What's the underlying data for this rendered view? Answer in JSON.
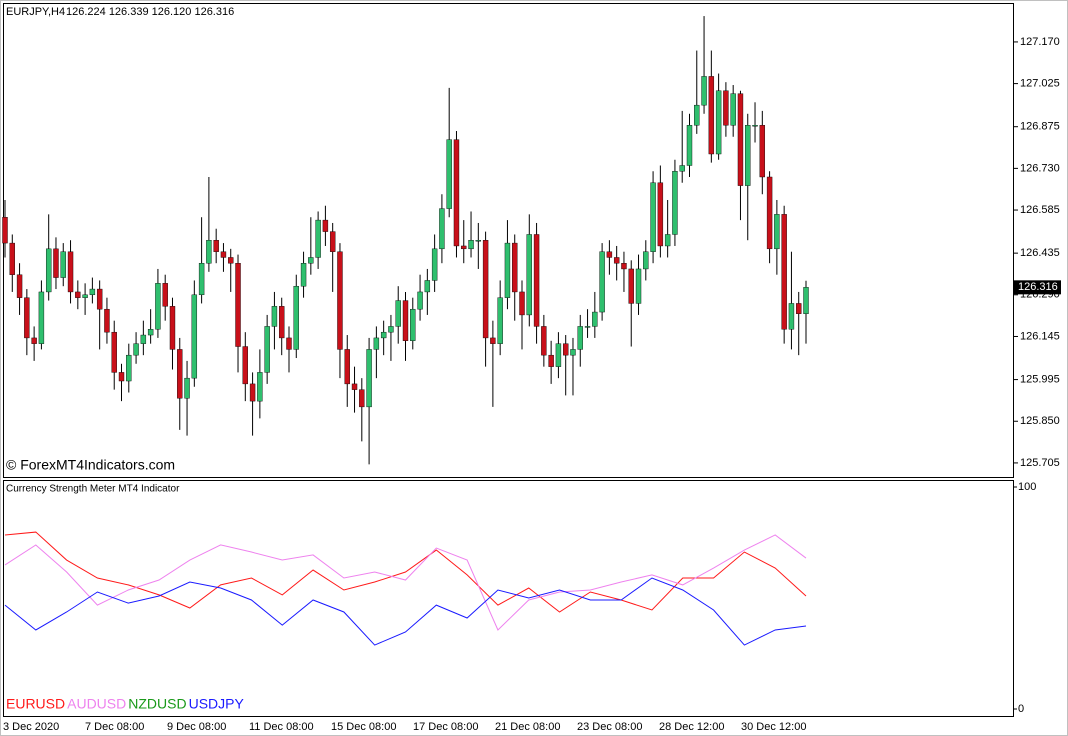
{
  "chart_data": [
    {
      "type": "candlestick",
      "title": "EURJPY,H4",
      "subtitle": "126.224 126.339 126.120 126.316",
      "watermark": "© ForexMT4Indicators.com",
      "up_color": "#2fbf6e",
      "down_color": "#c8101a",
      "open": [
        126.56,
        126.47,
        126.36,
        126.28,
        126.14,
        126.12,
        126.3,
        126.45,
        126.35,
        126.44,
        126.3,
        126.28,
        126.29,
        126.31,
        126.24,
        126.16,
        126.02,
        125.99,
        126.08,
        126.12,
        126.15,
        126.17,
        126.33,
        126.25,
        126.1,
        125.93,
        126.0,
        126.29,
        126.4,
        126.48,
        126.44,
        126.42,
        126.4,
        126.11,
        125.98,
        125.92,
        126.02,
        126.18,
        126.25,
        126.14,
        126.1,
        126.32,
        126.4,
        126.42,
        126.55,
        126.51,
        126.44,
        126.1,
        125.98,
        125.96,
        125.9,
        126.1,
        126.14,
        126.16,
        126.18,
        126.27,
        126.13,
        126.24,
        126.3,
        126.34,
        126.45,
        126.59,
        126.83,
        126.46,
        126.45,
        126.48,
        126.48,
        126.14,
        126.12,
        126.28,
        126.47,
        126.3,
        126.22,
        126.5,
        126.18,
        126.08,
        126.04,
        126.12,
        126.08,
        126.1,
        126.18,
        126.18,
        126.23,
        126.44,
        126.42,
        126.4,
        126.38,
        126.26,
        126.38,
        126.44,
        126.68,
        126.46,
        126.5,
        126.72,
        126.74,
        126.88,
        126.95,
        127.05,
        126.78,
        127.0,
        126.88,
        126.99,
        126.67,
        126.88,
        126.88,
        126.7,
        126.45,
        126.57,
        126.17,
        126.26,
        126.224
      ],
      "high": [
        126.62,
        126.5,
        126.4,
        126.31,
        126.18,
        126.34,
        126.57,
        126.49,
        126.47,
        126.48,
        126.34,
        126.33,
        126.35,
        126.34,
        126.28,
        126.2,
        126.05,
        126.12,
        126.16,
        126.2,
        126.24,
        126.38,
        126.36,
        126.28,
        126.14,
        126.06,
        126.34,
        126.56,
        126.7,
        126.52,
        126.47,
        126.45,
        126.43,
        126.16,
        126.02,
        126.1,
        126.22,
        126.3,
        126.28,
        126.18,
        126.36,
        126.44,
        126.56,
        126.58,
        126.6,
        126.54,
        126.47,
        126.15,
        126.04,
        126.0,
        126.14,
        126.18,
        126.2,
        126.22,
        126.32,
        126.3,
        126.28,
        126.36,
        126.38,
        126.5,
        126.64,
        127.01,
        126.86,
        126.55,
        126.58,
        126.54,
        126.51,
        126.2,
        126.34,
        126.55,
        126.5,
        126.34,
        126.57,
        126.54,
        126.22,
        126.13,
        126.16,
        126.15,
        126.14,
        126.22,
        126.24,
        126.3,
        126.47,
        126.48,
        126.46,
        126.44,
        126.41,
        126.43,
        126.48,
        126.72,
        126.74,
        126.62,
        126.76,
        126.93,
        126.92,
        127.14,
        127.26,
        127.14,
        127.06,
        127.03,
        127.02,
        127.0,
        126.92,
        126.96,
        126.93,
        126.72,
        126.62,
        126.6,
        126.44,
        126.3,
        126.339
      ],
      "low": [
        126.42,
        126.3,
        126.22,
        126.08,
        126.06,
        126.1,
        126.27,
        126.31,
        126.32,
        126.26,
        126.24,
        126.22,
        126.26,
        126.1,
        126.12,
        125.96,
        125.92,
        125.95,
        126.05,
        126.08,
        126.12,
        126.14,
        126.2,
        126.03,
        125.82,
        125.8,
        125.97,
        126.26,
        126.37,
        126.4,
        126.37,
        126.3,
        126.02,
        125.92,
        125.8,
        125.86,
        125.98,
        126.1,
        126.08,
        126.02,
        126.07,
        126.28,
        126.36,
        126.38,
        126.46,
        126.3,
        126.0,
        125.9,
        125.88,
        125.78,
        125.7,
        126.0,
        126.08,
        126.06,
        126.12,
        126.06,
        126.1,
        126.2,
        126.22,
        126.3,
        126.4,
        126.56,
        126.42,
        126.4,
        126.42,
        126.38,
        126.04,
        125.9,
        126.08,
        126.24,
        126.2,
        126.1,
        126.18,
        126.12,
        126.04,
        125.98,
        126.0,
        125.94,
        125.94,
        126.04,
        126.14,
        126.14,
        126.2,
        126.36,
        126.34,
        126.3,
        126.11,
        126.22,
        126.34,
        126.4,
        126.42,
        126.42,
        126.46,
        126.68,
        126.7,
        126.85,
        126.92,
        126.75,
        126.76,
        126.84,
        126.84,
        126.55,
        126.48,
        126.82,
        126.64,
        126.4,
        126.36,
        126.12,
        126.1,
        126.08,
        126.12
      ],
      "close": [
        126.47,
        126.36,
        126.28,
        126.14,
        126.12,
        126.3,
        126.45,
        126.35,
        126.44,
        126.3,
        126.28,
        126.29,
        126.31,
        126.24,
        126.16,
        126.02,
        125.99,
        126.08,
        126.12,
        126.15,
        126.17,
        126.33,
        126.25,
        126.1,
        125.93,
        126.0,
        126.29,
        126.4,
        126.48,
        126.44,
        126.42,
        126.4,
        126.11,
        125.98,
        125.92,
        126.02,
        126.18,
        126.25,
        126.14,
        126.1,
        126.32,
        126.4,
        126.42,
        126.55,
        126.51,
        126.44,
        126.1,
        125.98,
        125.96,
        125.9,
        126.1,
        126.14,
        126.16,
        126.18,
        126.27,
        126.13,
        126.24,
        126.3,
        126.34,
        126.45,
        126.59,
        126.83,
        126.46,
        126.45,
        126.48,
        126.48,
        126.14,
        126.12,
        126.28,
        126.47,
        126.3,
        126.22,
        126.5,
        126.18,
        126.08,
        126.04,
        126.12,
        126.08,
        126.1,
        126.18,
        126.18,
        126.23,
        126.44,
        126.42,
        126.4,
        126.38,
        126.26,
        126.38,
        126.44,
        126.68,
        126.46,
        126.5,
        126.72,
        126.74,
        126.88,
        126.95,
        127.05,
        126.78,
        127.0,
        126.88,
        126.99,
        126.67,
        126.88,
        126.88,
        126.7,
        126.45,
        126.57,
        126.17,
        126.26,
        126.224,
        126.316
      ],
      "ylim": [
        125.656,
        127.302
      ],
      "yticks": [
        {
          "value": 127.17,
          "label": "127.170"
        },
        127.025,
        126.875,
        {
          "value": 126.73,
          "label": "126.730"
        },
        126.585,
        126.435,
        {
          "value": 126.29,
          "label": "126.290"
        },
        126.145,
        125.995,
        {
          "value": 125.85,
          "label": "125.850"
        },
        125.705
      ]
    },
    {
      "type": "line",
      "title": "Currency Strength Meter MT4 Indicator",
      "series": [
        {
          "name": "EURUSD",
          "color": "#ff1a1a",
          "values": [
            78.4,
            79.7,
            67.1,
            59.0,
            55.9,
            51.4,
            45.5,
            55.9,
            59.0,
            51.4,
            62.6,
            53.6,
            57.2,
            61.7,
            71.6,
            60.4,
            46.8,
            54.5,
            43.7,
            52.7,
            49.1,
            44.6,
            59.0,
            59.0,
            70.7,
            63.5,
            50.9
          ]
        },
        {
          "name": "AUDUSD",
          "color": "#ee82ee",
          "values": [
            64.9,
            73.9,
            61.7,
            46.8,
            53.6,
            58.1,
            67.1,
            73.9,
            70.7,
            67.1,
            69.4,
            59.0,
            61.7,
            58.1,
            72.5,
            67.1,
            35.6,
            49.1,
            52.7,
            53.6,
            57.2,
            60.4,
            55.9,
            63.5,
            71.6,
            78.4,
            68.0
          ]
        },
        {
          "name": "NZDUSD",
          "color": "#1a9a1a",
          "values": []
        },
        {
          "name": "USDJPY",
          "color": "#1a1aff",
          "values": [
            46.8,
            35.6,
            43.7,
            52.7,
            47.7,
            50.9,
            57.2,
            54.5,
            49.1,
            37.8,
            49.1,
            43.7,
            28.8,
            34.7,
            46.8,
            41.0,
            53.6,
            50.0,
            53.6,
            49.1,
            49.1,
            59.0,
            53.6,
            44.6,
            28.8,
            35.6,
            37.4
          ]
        }
      ],
      "ylim": [
        0,
        100
      ],
      "yticks": [
        0,
        100
      ],
      "x_labels": [
        "3 Dec 2020",
        "7 Dec 08:00",
        "9 Dec 08:00",
        "11 Dec 08:00",
        "15 Dec 08:00",
        "17 Dec 08:00",
        "21 Dec 08:00",
        "23 Dec 08:00",
        "28 Dec 12:00",
        "30 Dec 12:00"
      ]
    }
  ]
}
